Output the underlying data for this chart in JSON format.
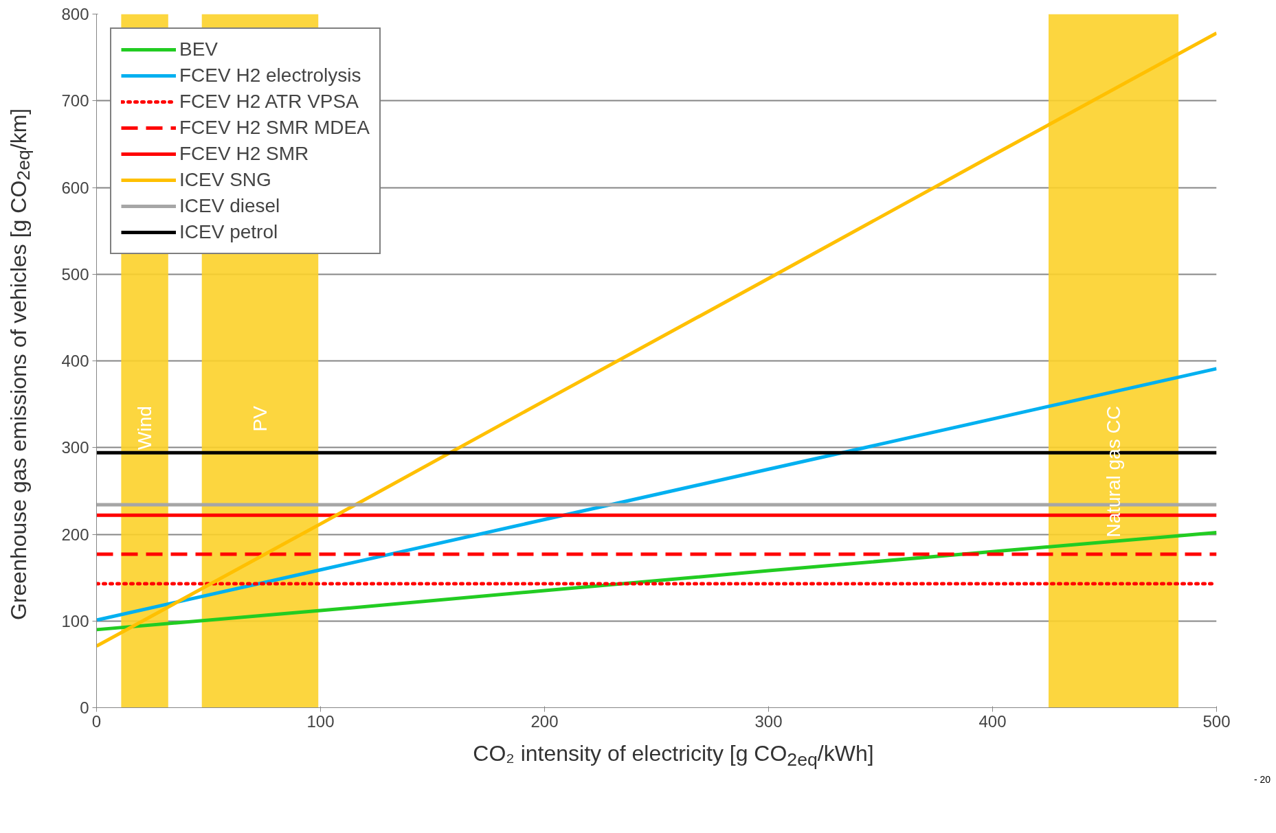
{
  "chart_data": {
    "type": "line",
    "xlabel": "CO₂ intensity of electricity [g CO$_{2eq}$/kWh]",
    "ylabel": "Greenhouse gas emissions of vehicles [g CO$_{2eq}$/km]",
    "x": [
      0,
      100,
      200,
      300,
      400,
      500
    ],
    "series": [
      {
        "name": "BEV",
        "color": "#22cc22",
        "line_style": "solid",
        "values": [
          90,
          112,
          135,
          158,
          180,
          202
        ]
      },
      {
        "name": "FCEV H2 electrolysis",
        "color": "#00b0f0",
        "line_style": "solid",
        "values": [
          101,
          159,
          217,
          275,
          333,
          391
        ]
      },
      {
        "name": "FCEV H2 ATR VPSA",
        "color": "#ff0000",
        "line_style": "dotted",
        "values": [
          143,
          143,
          143,
          143,
          143,
          143
        ]
      },
      {
        "name": "FCEV H2 SMR MDEA",
        "color": "#ff0000",
        "line_style": "dashed",
        "values": [
          177,
          177,
          177,
          177,
          177,
          177
        ]
      },
      {
        "name": "FCEV H2 SMR",
        "color": "#ff0000",
        "line_style": "solid",
        "values": [
          222,
          222,
          222,
          222,
          222,
          222
        ]
      },
      {
        "name": "ICEV SNG",
        "color": "#ffc000",
        "line_style": "solid",
        "values": [
          71,
          212,
          354,
          495,
          637,
          778
        ]
      },
      {
        "name": "ICEV diesel",
        "color": "#a6a6a6",
        "line_style": "solid",
        "values": [
          234,
          234,
          234,
          234,
          234,
          234
        ]
      },
      {
        "name": "ICEV petrol",
        "color": "#000000",
        "line_style": "solid",
        "values": [
          294,
          294,
          294,
          294,
          294,
          294
        ]
      }
    ],
    "bands": [
      {
        "axis": "x",
        "from": 11,
        "to": 32,
        "label": "Wind",
        "color": "#fcd12a"
      },
      {
        "axis": "x",
        "from": 47,
        "to": 99,
        "label": "PV",
        "color": "#fcd12a"
      },
      {
        "axis": "x",
        "from": 425,
        "to": 483,
        "label": "Natural gas CC",
        "color": "#fcd12a"
      }
    ],
    "xlim": [
      0,
      500
    ],
    "xticks": [
      0,
      100,
      200,
      300,
      400,
      500
    ],
    "ylim": [
      0,
      800
    ],
    "yticks": [
      0,
      100,
      200,
      300,
      400,
      500,
      600,
      700,
      800
    ],
    "grid": "y",
    "legend": "top left",
    "annotations": [
      "- 20"
    ]
  }
}
